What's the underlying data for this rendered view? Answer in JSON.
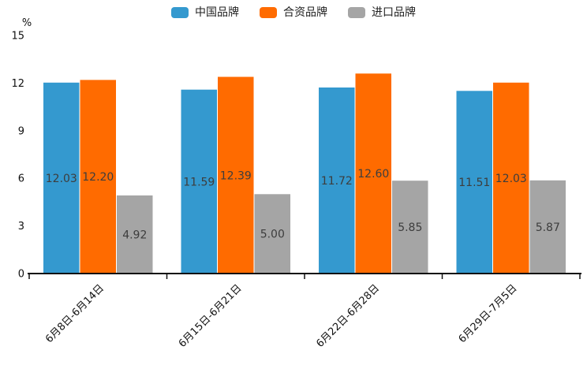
{
  "chart_data": {
    "type": "bar",
    "title": "",
    "xlabel": "",
    "ylabel": "%",
    "ylim": [
      0,
      15
    ],
    "yticks": [
      0,
      3,
      6,
      9,
      12,
      15
    ],
    "grid": false,
    "legend_position": "top-center",
    "value_label_decimals": 2,
    "categories": [
      "6月8日-6月14日",
      "6月15日-6月21日",
      "6月22日-6月28日",
      "6月29日-7月5日"
    ],
    "series": [
      {
        "name": "中国品牌",
        "color": "#3499CF",
        "values": [
          12.03,
          11.59,
          11.72,
          11.51
        ]
      },
      {
        "name": "合资品牌",
        "color": "#FF6B00",
        "values": [
          12.2,
          12.39,
          12.6,
          12.03
        ]
      },
      {
        "name": "进口品牌",
        "color": "#A5A5A5",
        "values": [
          4.92,
          5.0,
          5.85,
          5.87
        ]
      }
    ],
    "colors": {
      "axis": "#111111",
      "tick_label": "#111111",
      "value_label": "#3D3D3D",
      "background": "#FFFFFF"
    }
  }
}
